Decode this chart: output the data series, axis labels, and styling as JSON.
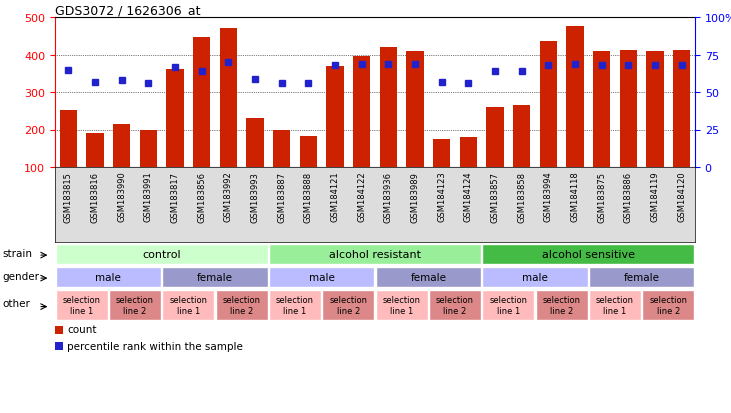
{
  "title": "GDS3072 / 1626306_at",
  "samples": [
    "GSM183815",
    "GSM183816",
    "GSM183990",
    "GSM183991",
    "GSM183817",
    "GSM183856",
    "GSM183992",
    "GSM183993",
    "GSM183887",
    "GSM183888",
    "GSM184121",
    "GSM184122",
    "GSM183936",
    "GSM183989",
    "GSM184123",
    "GSM184124",
    "GSM183857",
    "GSM183858",
    "GSM183994",
    "GSM184118",
    "GSM183875",
    "GSM183886",
    "GSM184119",
    "GSM184120"
  ],
  "bar_values": [
    252,
    192,
    215,
    198,
    362,
    447,
    470,
    230,
    200,
    183,
    370,
    395,
    419,
    410,
    175,
    180,
    260,
    265,
    437,
    477,
    410,
    413,
    410,
    413
  ],
  "percentile_values": [
    65,
    57,
    58,
    56,
    67,
    64,
    70,
    59,
    56,
    56,
    68,
    69,
    69,
    69,
    57,
    56,
    64,
    64,
    68,
    69,
    68,
    68,
    68,
    68
  ],
  "bar_color": "#cc2200",
  "dot_color": "#2222cc",
  "ylim_left": [
    100,
    500
  ],
  "ylim_right": [
    0,
    100
  ],
  "yticks_left": [
    100,
    200,
    300,
    400,
    500
  ],
  "yticks_right": [
    0,
    25,
    50,
    75,
    100
  ],
  "ytick_labels_right": [
    "0",
    "25",
    "50",
    "75",
    "100%"
  ],
  "grid_values": [
    200,
    300,
    400
  ],
  "strain_groups": [
    {
      "label": "control",
      "start": 0,
      "end": 8,
      "color": "#ccffcc"
    },
    {
      "label": "alcohol resistant",
      "start": 8,
      "end": 16,
      "color": "#99ee99"
    },
    {
      "label": "alcohol sensitive",
      "start": 16,
      "end": 24,
      "color": "#44bb44"
    }
  ],
  "gender_groups": [
    {
      "label": "male",
      "start": 0,
      "end": 4,
      "color": "#bbbbff"
    },
    {
      "label": "female",
      "start": 4,
      "end": 8,
      "color": "#9999cc"
    },
    {
      "label": "male",
      "start": 8,
      "end": 12,
      "color": "#bbbbff"
    },
    {
      "label": "female",
      "start": 12,
      "end": 16,
      "color": "#9999cc"
    },
    {
      "label": "male",
      "start": 16,
      "end": 20,
      "color": "#bbbbff"
    },
    {
      "label": "female",
      "start": 20,
      "end": 24,
      "color": "#9999cc"
    }
  ],
  "other_groups": [
    {
      "label": "selection\nline 1",
      "start": 0,
      "end": 2,
      "color": "#ffbbbb"
    },
    {
      "label": "selection\nline 2",
      "start": 2,
      "end": 4,
      "color": "#dd8888"
    },
    {
      "label": "selection\nline 1",
      "start": 4,
      "end": 6,
      "color": "#ffbbbb"
    },
    {
      "label": "selection\nline 2",
      "start": 6,
      "end": 8,
      "color": "#dd8888"
    },
    {
      "label": "selection\nline 1",
      "start": 8,
      "end": 10,
      "color": "#ffbbbb"
    },
    {
      "label": "selection\nline 2",
      "start": 10,
      "end": 12,
      "color": "#dd8888"
    },
    {
      "label": "selection\nline 1",
      "start": 12,
      "end": 14,
      "color": "#ffbbbb"
    },
    {
      "label": "selection\nline 2",
      "start": 14,
      "end": 16,
      "color": "#dd8888"
    },
    {
      "label": "selection\nline 1",
      "start": 16,
      "end": 18,
      "color": "#ffbbbb"
    },
    {
      "label": "selection\nline 2",
      "start": 18,
      "end": 20,
      "color": "#dd8888"
    },
    {
      "label": "selection\nline 1",
      "start": 20,
      "end": 22,
      "color": "#ffbbbb"
    },
    {
      "label": "selection\nline 2",
      "start": 22,
      "end": 24,
      "color": "#dd8888"
    }
  ],
  "legend_items": [
    {
      "label": "count",
      "color": "#cc2200"
    },
    {
      "label": "percentile rank within the sample",
      "color": "#2222cc"
    }
  ],
  "bg_color": "#ffffff",
  "sample_area_color": "#dddddd"
}
